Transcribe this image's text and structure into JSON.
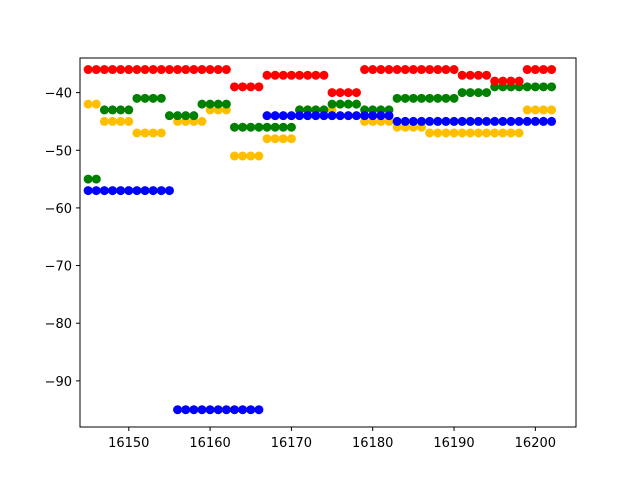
{
  "chart_data": {
    "type": "scatter",
    "title": "",
    "xlabel": "",
    "ylabel": "",
    "xlim": [
      16144,
      16205
    ],
    "ylim": [
      -98,
      -34
    ],
    "grid": false,
    "legend": "none",
    "xticks": [
      16150,
      16160,
      16170,
      16180,
      16190,
      16200
    ],
    "yticks": [
      -90,
      -80,
      -70,
      -60,
      -50,
      -40
    ],
    "xtick_labels": [
      "16150",
      "16160",
      "16170",
      "16180",
      "16190",
      "16200"
    ],
    "ytick_labels": [
      "−90",
      "−80",
      "−70",
      "−60",
      "−50",
      "−40"
    ],
    "series": [
      {
        "color": "#ffbf00",
        "segments": [
          {
            "x_start": 16145,
            "x_end": 16146,
            "y": -42
          },
          {
            "x_start": 16147,
            "x_end": 16150,
            "y": -45
          },
          {
            "x_start": 16151,
            "x_end": 16154,
            "y": -47
          },
          {
            "x_start": 16156,
            "x_end": 16159,
            "y": -45
          },
          {
            "x_start": 16160,
            "x_end": 16162,
            "y": -43
          },
          {
            "x_start": 16163,
            "x_end": 16166,
            "y": -51
          },
          {
            "x_start": 16167,
            "x_end": 16170,
            "y": -48
          },
          {
            "x_start": 16171,
            "x_end": 16175,
            "y": -43
          },
          {
            "x_start": 16176,
            "x_end": 16178,
            "y": -42
          },
          {
            "x_start": 16179,
            "x_end": 16182,
            "y": -45
          },
          {
            "x_start": 16183,
            "x_end": 16186,
            "y": -46
          },
          {
            "x_start": 16187,
            "x_end": 16198,
            "y": -47
          },
          {
            "x_start": 16199,
            "x_end": 16202,
            "y": -43
          }
        ]
      },
      {
        "color": "#008000",
        "segments": [
          {
            "x_start": 16145,
            "x_end": 16146,
            "y": -55
          },
          {
            "x_start": 16147,
            "x_end": 16150,
            "y": -43
          },
          {
            "x_start": 16151,
            "x_end": 16154,
            "y": -41
          },
          {
            "x_start": 16155,
            "x_end": 16158,
            "y": -44
          },
          {
            "x_start": 16159,
            "x_end": 16162,
            "y": -42
          },
          {
            "x_start": 16163,
            "x_end": 16170,
            "y": -46
          },
          {
            "x_start": 16171,
            "x_end": 16174,
            "y": -43
          },
          {
            "x_start": 16175,
            "x_end": 16178,
            "y": -42
          },
          {
            "x_start": 16179,
            "x_end": 16182,
            "y": -43
          },
          {
            "x_start": 16183,
            "x_end": 16190,
            "y": -41
          },
          {
            "x_start": 16191,
            "x_end": 16194,
            "y": -40
          },
          {
            "x_start": 16195,
            "x_end": 16202,
            "y": -39
          }
        ]
      },
      {
        "color": "#ff0000",
        "segments": [
          {
            "x_start": 16145,
            "x_end": 16162,
            "y": -36
          },
          {
            "x_start": 16163,
            "x_end": 16166,
            "y": -39
          },
          {
            "x_start": 16167,
            "x_end": 16174,
            "y": -37
          },
          {
            "x_start": 16175,
            "x_end": 16178,
            "y": -40
          },
          {
            "x_start": 16179,
            "x_end": 16190,
            "y": -36
          },
          {
            "x_start": 16191,
            "x_end": 16194,
            "y": -37
          },
          {
            "x_start": 16195,
            "x_end": 16198,
            "y": -38
          },
          {
            "x_start": 16199,
            "x_end": 16202,
            "y": -36
          }
        ]
      },
      {
        "color": "#0000ff",
        "segments": [
          {
            "x_start": 16145,
            "x_end": 16155,
            "y": -57
          },
          {
            "x_start": 16156,
            "x_end": 16166,
            "y": -95
          },
          {
            "x_start": 16167,
            "x_end": 16182,
            "y": -44
          },
          {
            "x_start": 16183,
            "x_end": 16202,
            "y": -45
          }
        ]
      }
    ]
  }
}
